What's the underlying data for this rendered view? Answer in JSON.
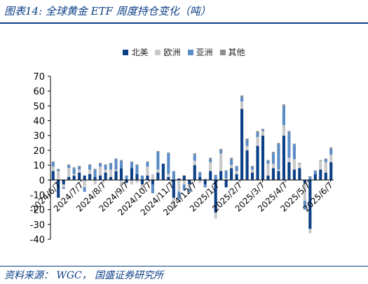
{
  "header": {
    "title": "图表14:  全球黄金 ETF 周度持仓变化（吨）"
  },
  "footer": {
    "source": "资料来源： WGC， 国盛证券研究所"
  },
  "colors": {
    "north_america": "#0b3f86",
    "europe": "#c8c8c8",
    "asia": "#5b8cc6",
    "other": "#8c8c8c",
    "axis": "#000000",
    "title": "#0b3f86"
  },
  "chart_data": {
    "type": "bar",
    "stacked": true,
    "title": "",
    "xlabel": "",
    "ylabel": "",
    "ylim": [
      -40,
      70
    ],
    "yticks": [
      -40,
      -30,
      -20,
      -10,
      0,
      10,
      20,
      30,
      40,
      50,
      60,
      70
    ],
    "grid": false,
    "legend_position": "top-center",
    "x_tick_labels": [
      "2024/6/7",
      "2024/7/7",
      "2024/8/7",
      "2024/9/7",
      "2024/10/7",
      "2024/11/7",
      "2024/12/7",
      "2025/1/7",
      "2025/2/7",
      "2025/3/7",
      "2025/4/7",
      "2025/5/7",
      "2025/6/7"
    ],
    "series": [
      {
        "name": "北美",
        "key": "north_america",
        "values": [
          6,
          -12,
          -3,
          2,
          3,
          5,
          3,
          4,
          2,
          3,
          5,
          2,
          6,
          8,
          -2,
          8,
          4,
          -3,
          3,
          -3,
          5,
          11,
          2,
          -12,
          1,
          3,
          -3,
          10,
          2,
          -3,
          6,
          -22,
          6,
          -5,
          8,
          4,
          48,
          20,
          5,
          23,
          30,
          3,
          8,
          6,
          30,
          12,
          7,
          8,
          -2,
          -33,
          4,
          7,
          5,
          12
        ]
      },
      {
        "name": "欧洲",
        "key": "europe",
        "values": [
          3,
          6,
          -2,
          6,
          1,
          2,
          -5,
          3,
          -3,
          6,
          2,
          5,
          1,
          -4,
          0,
          -3,
          -2,
          -4,
          6,
          4,
          2,
          0,
          2,
          -8,
          -8,
          -3,
          -3,
          3,
          -2,
          1,
          6,
          -4,
          12,
          1,
          2,
          2,
          5,
          3,
          2,
          6,
          3,
          8,
          3,
          1,
          7,
          3,
          7,
          3,
          -12,
          -3,
          0,
          6,
          7,
          5
        ]
      },
      {
        "name": "亚洲",
        "key": "asia",
        "values": [
          3,
          1,
          -1,
          2,
          4,
          2,
          -3,
          3,
          5,
          2,
          3,
          4,
          7,
          5,
          3,
          4,
          6,
          3,
          3,
          -6,
          12,
          0,
          14,
          6,
          -5,
          -4,
          -2,
          4,
          3,
          -2,
          2,
          3,
          2,
          5,
          4,
          3,
          3,
          4,
          2,
          3,
          1,
          2,
          7,
          17,
          13,
          17,
          10,
          0,
          -6,
          2,
          2,
          0,
          2,
          4
        ]
      },
      {
        "name": "其他",
        "key": "other",
        "values": [
          0.5,
          0.5,
          0,
          0.5,
          0.5,
          0.5,
          0,
          0.5,
          0.5,
          0.5,
          0.5,
          0.5,
          0.5,
          0.5,
          0,
          0.5,
          0.5,
          0,
          0.5,
          0,
          0.5,
          0,
          0.5,
          0,
          0,
          0,
          0,
          1,
          0.5,
          0,
          1,
          0.5,
          1,
          0.5,
          1,
          0.5,
          1,
          1,
          0.5,
          1,
          0.5,
          0.5,
          1,
          1,
          1,
          1,
          0.5,
          0.5,
          0,
          0.5,
          0.5,
          0.5,
          0.5,
          1
        ]
      }
    ]
  }
}
